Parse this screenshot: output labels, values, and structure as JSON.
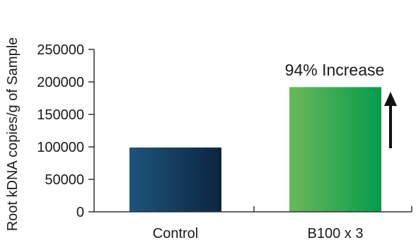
{
  "chart_data": {
    "type": "bar",
    "categories": [
      "Control",
      "B100 x 3"
    ],
    "values": [
      99000,
      192000
    ],
    "title": "",
    "xlabel": "",
    "ylabel": "Root kDNA copies/g of Sample",
    "ylim": [
      0,
      250000
    ],
    "yticks": [
      "0",
      "50000",
      "100000",
      "150000",
      "200000",
      "250000"
    ],
    "grid": false,
    "annotation": "94% Increase",
    "colors": {
      "control_start": "#1d557c",
      "control_end": "#0c2540",
      "treatment_start": "#6ab85a",
      "treatment_end": "#049c4c",
      "axis": "#333333",
      "arrow": "#111111"
    }
  }
}
